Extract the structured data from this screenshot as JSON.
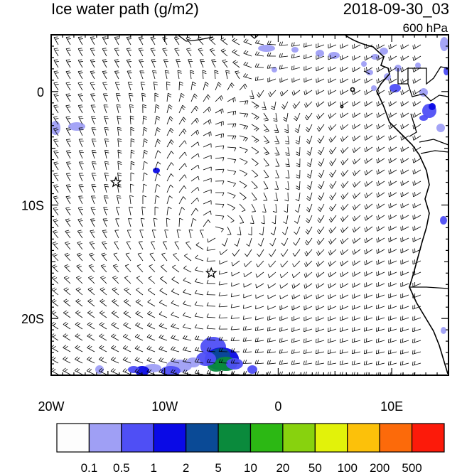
{
  "header": {
    "title": "Ice water path (g/m2)",
    "datetime": "2018-09-30_03",
    "level": "600 hPa"
  },
  "map": {
    "lon_range": [
      -20,
      15
    ],
    "lat_range": [
      -25,
      5
    ],
    "x_ticks": [
      "20W",
      "10W",
      "0",
      "10E"
    ],
    "y_ticks": [
      "0",
      "10S",
      "20S"
    ],
    "markers": [
      {
        "type": "star",
        "lon": -14.3,
        "lat": -8.0
      },
      {
        "type": "star",
        "lon": -5.9,
        "lat": -16.0
      }
    ]
  },
  "colorbar": {
    "colors": [
      "#fdfdfd",
      "#9f9ff5",
      "#4f4ff5",
      "#0a0ae6",
      "#0a4a96",
      "#0a8a3c",
      "#2cb814",
      "#88d20e",
      "#e2f20a",
      "#fcc10a",
      "#fc6a0a",
      "#fc1a0a"
    ],
    "labels": [
      "0.1",
      "0.5",
      "1",
      "2",
      "5",
      "10",
      "20",
      "50",
      "100",
      "200",
      "500"
    ]
  }
}
